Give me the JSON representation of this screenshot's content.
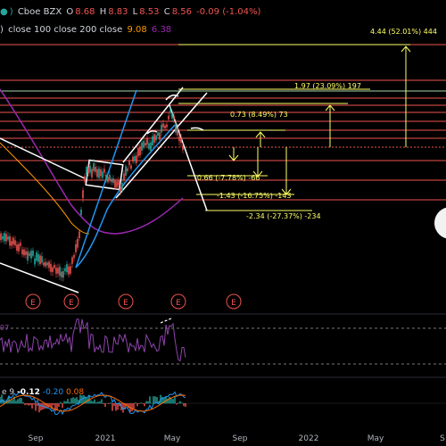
{
  "header": {
    "exchange": "Cboe BZX",
    "open_label": "O",
    "open": "8.68",
    "high_label": "H",
    "high": "8.83",
    "low_label": "L",
    "low": "8.53",
    "close_label": "C",
    "close": "8.56",
    "change": "-0.09 (-1.04%)",
    "ma_label": "close 100 close 200 close",
    "ma100": "9.08",
    "ma200": "6.38"
  },
  "rsi_label": "97",
  "macd": {
    "label": "e 9",
    "v1": "-0.12",
    "v2": "-0.20",
    "v3": "0.08"
  },
  "x_axis": [
    "Sep",
    "2021",
    "May",
    "Sep",
    "2022",
    "May",
    "S"
  ],
  "targets": [
    {
      "label": "4.44 (52.01%) 444"
    },
    {
      "label": "1.97 (23.09%) 197"
    },
    {
      "label": "0.73 (8.49%) 73"
    },
    {
      "label": "-0.66 (-7.78%) -66"
    },
    {
      "label": "-1.43 (-16.75%) -143"
    },
    {
      "label": "-2.34 (-27.37%) -234"
    }
  ],
  "earnings_marker": "E",
  "colors": {
    "up": "#26a69a",
    "down": "#ef5350",
    "accent": "#ffff66",
    "ma100": "#ff9800",
    "ma200": "#9c27b0",
    "rsi": "#8e44ad",
    "macd": "#2196f3",
    "signal": "#ff6d00",
    "blue_line": "#2196f3"
  }
}
